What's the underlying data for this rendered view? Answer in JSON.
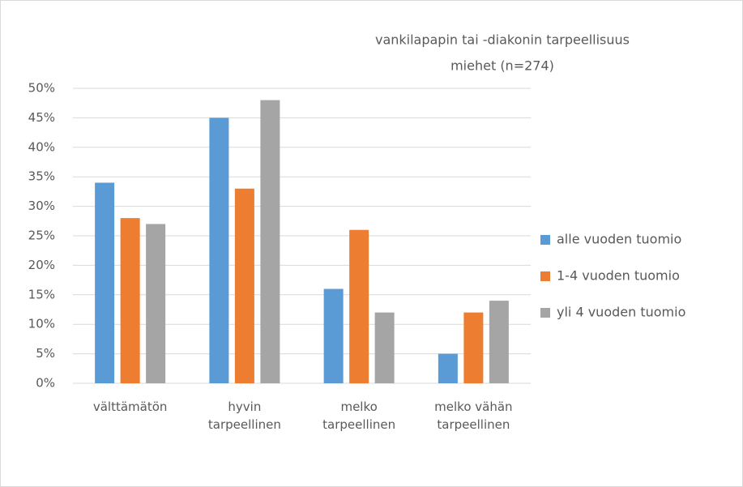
{
  "chart_data": {
    "type": "bar",
    "title": "vankilapapin tai -diakonin tarpeellisuus",
    "subtitle": "miehet (n=274)",
    "categories": [
      "välttämätön",
      "hyvin tarpeellinen",
      "melko tarpeellinen",
      "melko vähän tarpeellinen"
    ],
    "series": [
      {
        "name": "alle vuoden tuomio",
        "color": "#5b9bd5",
        "values": [
          34,
          45,
          16,
          5
        ]
      },
      {
        "name": "1-4 vuoden tuomio",
        "color": "#ed7d31",
        "values": [
          28,
          33,
          26,
          12
        ]
      },
      {
        "name": "yli 4 vuoden tuomio",
        "color": "#a5a5a5",
        "values": [
          27,
          48,
          12,
          14
        ]
      }
    ],
    "ylim": [
      0,
      50
    ],
    "yticks": [
      {
        "value": 0,
        "label": "0%"
      },
      {
        "value": 5,
        "label": "5%"
      },
      {
        "value": 10,
        "label": "10%"
      },
      {
        "value": 15,
        "label": "15%"
      },
      {
        "value": 20,
        "label": "20%"
      },
      {
        "value": 25,
        "label": "25%"
      },
      {
        "value": 30,
        "label": "30%"
      },
      {
        "value": 35,
        "label": "35%"
      },
      {
        "value": 40,
        "label": "40%"
      },
      {
        "value": 45,
        "label": "45%"
      },
      {
        "value": 50,
        "label": "50%"
      }
    ],
    "grid": true,
    "legend": "right"
  }
}
